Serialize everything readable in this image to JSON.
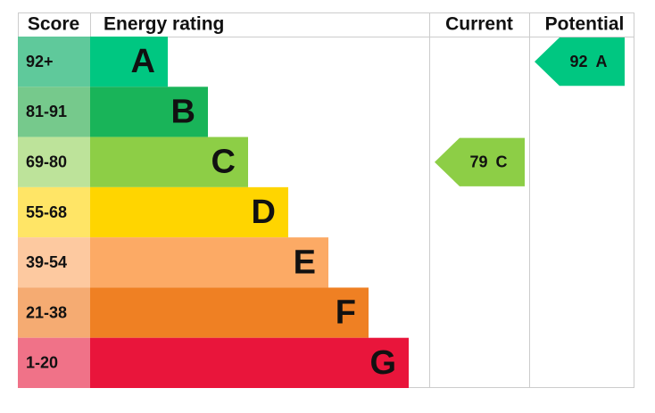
{
  "header": {
    "score": "Score",
    "rating": "Energy rating",
    "current": "Current",
    "potential": "Potential"
  },
  "bands": [
    {
      "range": "92+",
      "letter": "A",
      "color": "#00c781",
      "score_color": "#5fc99b"
    },
    {
      "range": "81-91",
      "letter": "B",
      "color": "#19b459",
      "score_color": "#76c98c"
    },
    {
      "range": "69-80",
      "letter": "C",
      "color": "#8dce46",
      "score_color": "#bde39a"
    },
    {
      "range": "55-68",
      "letter": "D",
      "color": "#ffd500",
      "score_color": "#ffe566"
    },
    {
      "range": "39-54",
      "letter": "E",
      "color": "#fcaa65",
      "score_color": "#fdc9a0"
    },
    {
      "range": "21-38",
      "letter": "F",
      "color": "#ef8023",
      "score_color": "#f5ab72"
    },
    {
      "range": "1-20",
      "letter": "G",
      "color": "#e9153b",
      "score_color": "#f07288"
    }
  ],
  "current": {
    "value": 79,
    "letter": "C"
  },
  "potential": {
    "value": 92,
    "letter": "A"
  }
}
